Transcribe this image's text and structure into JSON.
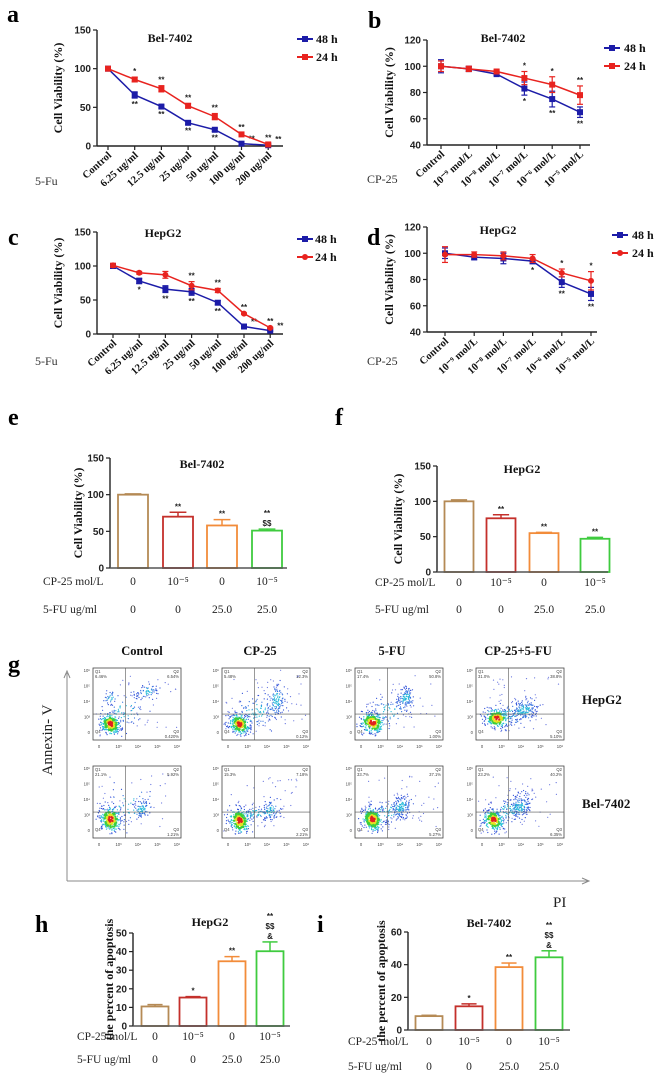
{
  "panel_letters": [
    "a",
    "b",
    "c",
    "d",
    "e",
    "f",
    "g",
    "h",
    "i"
  ],
  "chart_data": [
    {
      "panel": "a",
      "type": "line",
      "title": "Bel-7402",
      "ylabel": "Cell Viability (%)",
      "treatment_label": "5-Fu",
      "categories": [
        "Control",
        "6.25 ug/ml",
        "12.5 ug/ml",
        "25 ug/ml",
        "50 ug/ml",
        "100 ug/ml",
        "200 ug/ml"
      ],
      "ylim": [
        0,
        150
      ],
      "yticks": [
        "0",
        "50",
        "100",
        "150"
      ],
      "legend": "right",
      "series": [
        {
          "name": "48 h",
          "color": "#1c1ca8",
          "marker": "square",
          "values": [
            100,
            66,
            51,
            30,
            21,
            3,
            1
          ],
          "errors": [
            2,
            4,
            2,
            2,
            2,
            1,
            1
          ],
          "annotations": [
            "",
            "**",
            "**",
            "**",
            "**",
            "**",
            "**"
          ]
        },
        {
          "name": "24 h",
          "color": "#e8231f",
          "marker": "square",
          "values": [
            100,
            86,
            74,
            52,
            38,
            15,
            2
          ],
          "errors": [
            1,
            3,
            4,
            3,
            4,
            2,
            1
          ],
          "annotations": [
            "",
            "*",
            "**",
            "**",
            "**",
            "**",
            "**"
          ]
        }
      ]
    },
    {
      "panel": "b",
      "type": "line",
      "title": "Bel-7402",
      "ylabel": "Cell Viability (%)",
      "treatment_label": "CP-25",
      "categories": [
        "Control",
        "10⁻⁹ mol/L",
        "10⁻⁸ mol/L",
        "10⁻⁷ mol/L",
        "10⁻⁶ mol/L",
        "10⁻⁵ mol/L"
      ],
      "ylim": [
        40,
        120
      ],
      "yticks": [
        "40",
        "60",
        "80",
        "100",
        "120"
      ],
      "legend": "right",
      "series": [
        {
          "name": "48 h",
          "color": "#1c1ca8",
          "marker": "square",
          "values": [
            100,
            98,
            94,
            83,
            75,
            65
          ],
          "errors": [
            5,
            2,
            1,
            5,
            6,
            4
          ],
          "annotations": [
            "",
            "",
            "",
            "*",
            "**",
            "**"
          ]
        },
        {
          "name": "24 h",
          "color": "#e8231f",
          "marker": "square",
          "values": [
            100,
            98,
            96,
            91,
            86,
            78
          ],
          "errors": [
            4,
            2,
            1,
            5,
            6,
            7
          ],
          "annotations": [
            "",
            "",
            "",
            "*",
            "*",
            "**"
          ]
        }
      ]
    },
    {
      "panel": "c",
      "type": "line",
      "title": "HepG2",
      "ylabel": "Cell Viability (%)",
      "treatment_label": "5-Fu",
      "categories": [
        "Control",
        "6.25 ug/ml",
        "12.5 ug/ml",
        "25 ug/ml",
        "50 ug/ml",
        "100 ug/ml",
        "200 ug/ml"
      ],
      "ylim": [
        0,
        150
      ],
      "yticks": [
        "0",
        "50",
        "100",
        "150"
      ],
      "legend": "right",
      "series": [
        {
          "name": "48 h",
          "color": "#1c1ca8",
          "marker": "square",
          "values": [
            100,
            78,
            66,
            62,
            46,
            11,
            5
          ],
          "errors": [
            3,
            4,
            5,
            5,
            3,
            2,
            1
          ],
          "annotations": [
            "",
            "*",
            "**",
            "**",
            "**",
            "**",
            "**"
          ]
        },
        {
          "name": "24 h",
          "color": "#e8231f",
          "marker": "circle",
          "values": [
            101,
            90,
            87,
            71,
            64,
            30,
            9
          ],
          "errors": [
            3,
            2,
            5,
            6,
            3,
            1,
            1
          ],
          "annotations": [
            "",
            "",
            "",
            "**",
            "**",
            "**",
            "**"
          ]
        }
      ]
    },
    {
      "panel": "d",
      "type": "line",
      "title": "HepG2",
      "ylabel": "Cell Viability (%)",
      "treatment_label": "CP-25",
      "categories": [
        "Control",
        "10⁻⁹ mol/L",
        "10⁻⁸ mol/L",
        "10⁻⁷ mol/L",
        "10⁻⁶ mol/L",
        "10⁻⁵ mol/L"
      ],
      "ylim": [
        40,
        120
      ],
      "yticks": [
        "40",
        "60",
        "80",
        "100",
        "120"
      ],
      "legend": "right",
      "series": [
        {
          "name": "48 h",
          "color": "#1c1ca8",
          "marker": "square",
          "values": [
            100,
            97,
            96,
            94,
            78,
            69
          ],
          "errors": [
            4,
            2,
            4,
            2,
            4,
            5
          ],
          "annotations": [
            "",
            "",
            "",
            "*",
            "**",
            "**"
          ]
        },
        {
          "name": "24 h",
          "color": "#e8231f",
          "marker": "circle",
          "values": [
            99,
            99,
            98,
            96,
            85,
            79
          ],
          "errors": [
            6,
            2,
            3,
            3,
            3,
            7
          ],
          "annotations": [
            "",
            "",
            "",
            "",
            "*",
            "*"
          ]
        }
      ]
    },
    {
      "panel": "e",
      "type": "bar",
      "title": "Bel-7402",
      "ylabel": "Cell Viability (%)",
      "ylim": [
        0,
        150
      ],
      "yticks": [
        "0",
        "50",
        "100",
        "150"
      ],
      "values": [
        100,
        70,
        58,
        51
      ],
      "errors": [
        1,
        6,
        8,
        2
      ],
      "colors": [
        "#b58a55",
        "#c4302b",
        "#f28c3a",
        "#3fcb3f"
      ],
      "annotations": [
        [],
        [
          "**"
        ],
        [
          "**"
        ],
        [
          "**",
          "$$"
        ]
      ],
      "condition_rows": [
        {
          "label": "CP-25 mol/L",
          "values": [
            "0",
            "10⁻⁵",
            "0",
            "10⁻⁵"
          ]
        },
        {
          "label": "5-FU  ug/ml",
          "values": [
            "0",
            "0",
            "25.0",
            "25.0"
          ]
        }
      ]
    },
    {
      "panel": "f",
      "type": "bar",
      "title": "HepG2",
      "ylabel": "Cell Viability (%)",
      "ylim": [
        0,
        150
      ],
      "yticks": [
        "0",
        "50",
        "100",
        "150"
      ],
      "values": [
        100,
        76,
        55,
        47
      ],
      "errors": [
        2,
        5,
        1,
        2
      ],
      "colors": [
        "#b58a55",
        "#c4302b",
        "#f28c3a",
        "#3fcb3f"
      ],
      "annotations": [
        [],
        [
          "**"
        ],
        [
          "**"
        ],
        [
          "**"
        ]
      ],
      "condition_rows": [
        {
          "label": "CP-25 mol/L",
          "values": [
            "0",
            "10⁻⁵",
            "0",
            "10⁻⁵"
          ]
        },
        {
          "label": "5-FU  ug/ml",
          "values": [
            "0",
            "0",
            "25.0",
            "25.0"
          ]
        }
      ]
    },
    {
      "panel": "g",
      "type": "scatter",
      "columns": [
        "Control",
        "CP-25",
        "5-FU",
        "CP-25+5-FU"
      ],
      "rows": [
        "HepG2",
        "Bel-7402"
      ],
      "xlabel": "PI",
      "ylabel": "Annexin- V",
      "quadrant_names": [
        "Q1",
        "Q2",
        "Q3",
        "Q4"
      ],
      "x_ticks": [
        "0",
        "10³",
        "10⁴",
        "10⁵",
        "10⁶"
      ],
      "y_ticks": [
        "10⁶",
        "10⁵",
        "10⁴",
        "10³",
        "0"
      ],
      "plots": [
        [
          {
            "q1": "6.46%",
            "q2": "6.54%",
            "q3": "0.420%"
          },
          {
            "q1": "5.48%",
            "q2": "12.3%",
            "q3": "0.12%"
          },
          {
            "q1": "17.4%",
            "q2": "50.8%",
            "q3": "1.00%"
          },
          {
            "q1": "31.0%",
            "q2": "38.8%",
            "q3": "5.10%"
          }
        ],
        [
          {
            "q1": "21.1%",
            "q2": "5.92%",
            "q3": "1.21%"
          },
          {
            "q1": "15.3%",
            "q2": "7.18%",
            "q3": "2.21%"
          },
          {
            "q1": "33.7%",
            "q2": "37.1%",
            "q3": "5.27%"
          },
          {
            "q1": "23.2%",
            "q2": "40.2%",
            "q3": "6.35%"
          }
        ]
      ]
    },
    {
      "panel": "h",
      "type": "bar",
      "title": "HepG2",
      "ylabel": "the percent of apoptosis",
      "ylim": [
        0,
        50
      ],
      "yticks": [
        "0",
        "10",
        "20",
        "30",
        "40",
        "50"
      ],
      "values": [
        10.5,
        15.3,
        34.8,
        40.2
      ],
      "errors": [
        1,
        0.5,
        2.5,
        5
      ],
      "colors": [
        "#b58a55",
        "#c4302b",
        "#f28c3a",
        "#3fcb3f"
      ],
      "annotations": [
        [],
        [
          "*"
        ],
        [
          "**"
        ],
        [
          "**",
          "$$",
          "&"
        ]
      ],
      "condition_rows": [
        {
          "label": "CP-25 mol/L",
          "values": [
            "0",
            "10⁻⁵",
            "0",
            "10⁻⁵"
          ]
        },
        {
          "label": "5-FU  ug/ml",
          "values": [
            "0",
            "0",
            "25.0",
            "25.0"
          ]
        }
      ]
    },
    {
      "panel": "i",
      "type": "bar",
      "title": "Bel-7402",
      "ylabel": "the percent of apoptosis",
      "ylim": [
        0,
        60
      ],
      "yticks": [
        "0",
        "20",
        "40",
        "60"
      ],
      "values": [
        8.5,
        14.5,
        38.5,
        44.5
      ],
      "errors": [
        0.5,
        1.5,
        2.5,
        4
      ],
      "colors": [
        "#b58a55",
        "#c4302b",
        "#f28c3a",
        "#3fcb3f"
      ],
      "annotations": [
        [],
        [
          "*"
        ],
        [
          "**"
        ],
        [
          "**",
          "$$",
          "&"
        ]
      ],
      "condition_rows": [
        {
          "label": "CP-25 mol/L",
          "values": [
            "0",
            "10⁻⁵",
            "0",
            "10⁻⁵"
          ]
        },
        {
          "label": "5-FU  ug/ml",
          "values": [
            "0",
            "0",
            "25.0",
            "25.0"
          ]
        }
      ]
    }
  ]
}
